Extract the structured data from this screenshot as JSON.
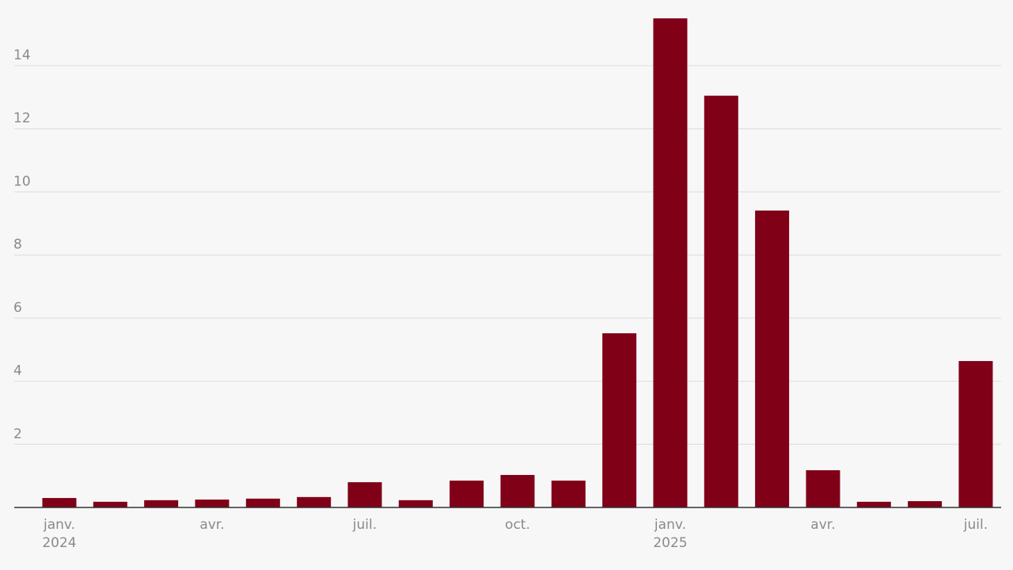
{
  "chart_data": {
    "type": "bar",
    "categories": [
      "janv. 2024",
      null,
      null,
      "avr.",
      null,
      null,
      "juil.",
      null,
      null,
      "oct.",
      null,
      null,
      "janv. 2025",
      null,
      null,
      "avr.",
      null,
      null,
      "juil."
    ],
    "values": [
      0.3,
      0.18,
      0.23,
      0.25,
      0.28,
      0.33,
      0.8,
      0.23,
      0.85,
      1.03,
      0.85,
      5.52,
      15.5,
      13.05,
      9.41,
      1.18,
      0.18,
      0.2,
      4.64
    ],
    "color": "#800018",
    "ylim": [
      0,
      15.6
    ],
    "yticks": [
      2,
      4,
      6,
      8,
      10,
      12,
      14
    ],
    "grid": true
  }
}
